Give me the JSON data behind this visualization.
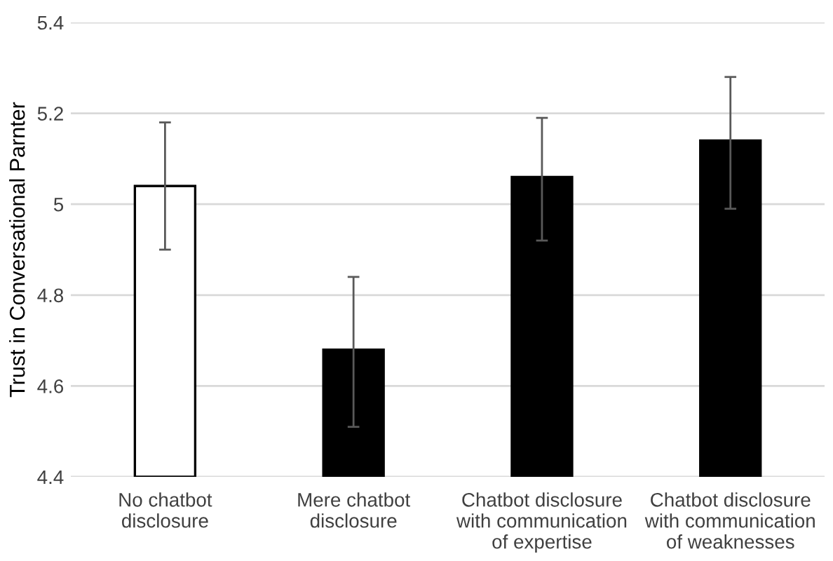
{
  "chart_data": {
    "type": "bar",
    "ylabel": "Trust in Conversational Parnter",
    "categories": [
      "No chatbot\ndisclosure",
      "Mere chatbot\ndisclosure",
      "Chatbot disclosure\nwith communication\nof expertise",
      "Chatbot disclosure\nwith communication\nof weaknesses"
    ],
    "values": [
      5.04,
      4.68,
      5.06,
      5.14
    ],
    "colors": [
      "#ffffff",
      "#000000",
      "#000000",
      "#000000"
    ],
    "errors": [
      [
        4.9,
        5.18
      ],
      [
        4.51,
        4.84
      ],
      [
        4.92,
        5.19
      ],
      [
        4.99,
        5.28
      ]
    ],
    "ylim": [
      4.4,
      5.4
    ],
    "yticks": [
      4.4,
      4.6,
      4.8,
      5,
      5.2,
      5.4
    ],
    "grid": "y"
  }
}
